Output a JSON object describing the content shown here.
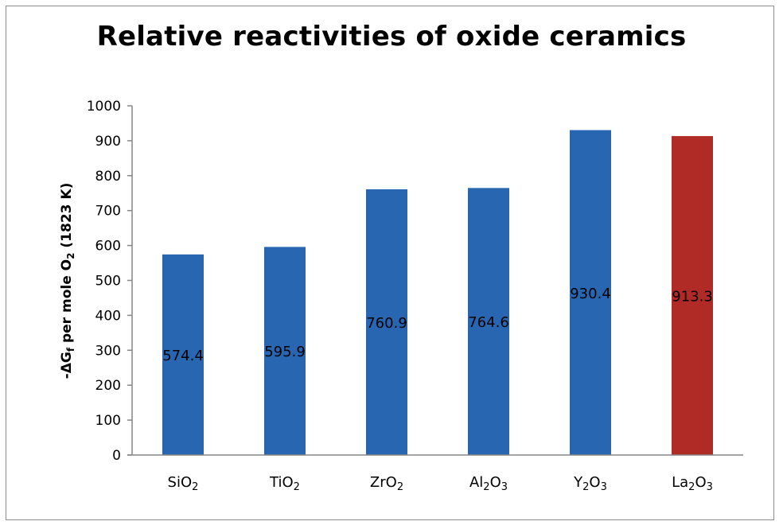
{
  "chart_data": {
    "type": "bar",
    "title": "Relative reactivities of oxide ceramics",
    "xlabel": "",
    "ylabel": {
      "prefix": "-ΔG",
      "prefix_sub": "f",
      "middle": " per mole O",
      "middle_sub": "2",
      "suffix": " (1823 K)"
    },
    "ylim": [
      0,
      1000
    ],
    "yticks": [
      0,
      100,
      200,
      300,
      400,
      500,
      600,
      700,
      800,
      900,
      1000
    ],
    "grid": false,
    "legend": "none",
    "categories": [
      {
        "base": "Si",
        "sub1": "",
        "mid": "O",
        "sub2": "2"
      },
      {
        "base": "Ti",
        "sub1": "",
        "mid": "O",
        "sub2": "2"
      },
      {
        "base": "Zr",
        "sub1": "",
        "mid": "O",
        "sub2": "2"
      },
      {
        "base": "Al",
        "sub1": "2",
        "mid": "O",
        "sub2": "3"
      },
      {
        "base": "Y",
        "sub1": "2",
        "mid": "O",
        "sub2": "3"
      },
      {
        "base": "La",
        "sub1": "2",
        "mid": "O",
        "sub2": "3"
      }
    ],
    "values": [
      574.4,
      595.9,
      760.9,
      764.6,
      930.4,
      913.3
    ],
    "data_labels": [
      "574.4",
      "595.9",
      "760.9",
      "764.6",
      "930.4",
      "913.3"
    ],
    "bar_colors": [
      "#2866b1",
      "#2866b1",
      "#2866b1",
      "#2866b1",
      "#2866b1",
      "#b02a26"
    ],
    "axis_color": "#868686"
  }
}
